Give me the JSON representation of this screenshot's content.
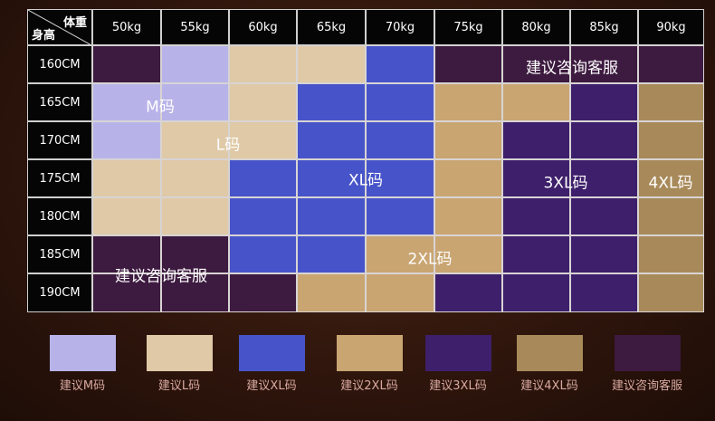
{
  "table": {
    "corner_top": "体重",
    "corner_bottom": "身高",
    "columns": [
      "50kg",
      "55kg",
      "60kg",
      "65kg",
      "70kg",
      "75kg",
      "80kg",
      "85kg",
      "90kg"
    ],
    "rows": [
      {
        "height": "160CM",
        "cells": [
          "#3d1a3f",
          "#b7b3e8",
          "#dfc9a7",
          "#dfc9a7",
          "#4754c9",
          "#3d1a3f",
          "#3d1a3f",
          "#3d1a3f",
          "#3d1a3f"
        ]
      },
      {
        "height": "165CM",
        "cells": [
          "#b7b3e8",
          "#b7b3e8",
          "#dfc9a7",
          "#4754c9",
          "#4754c9",
          "#c9a572",
          "#c9a572",
          "#3e1f6b",
          "#a88a5a"
        ]
      },
      {
        "height": "170CM",
        "cells": [
          "#b7b3e8",
          "#dfc9a7",
          "#dfc9a7",
          "#4754c9",
          "#4754c9",
          "#c9a572",
          "#3e1f6b",
          "#3e1f6b",
          "#a88a5a"
        ]
      },
      {
        "height": "175CM",
        "cells": [
          "#dfc9a7",
          "#dfc9a7",
          "#4754c9",
          "#4754c9",
          "#4754c9",
          "#c9a572",
          "#3e1f6b",
          "#3e1f6b",
          "#a88a5a"
        ]
      },
      {
        "height": "180CM",
        "cells": [
          "#dfc9a7",
          "#dfc9a7",
          "#4754c9",
          "#4754c9",
          "#4754c9",
          "#c9a572",
          "#3e1f6b",
          "#3e1f6b",
          "#a88a5a"
        ]
      },
      {
        "height": "185CM",
        "cells": [
          "#3d1a3f",
          "#3d1a3f",
          "#4754c9",
          "#4754c9",
          "#c9a572",
          "#c9a572",
          "#3e1f6b",
          "#3e1f6b",
          "#a88a5a"
        ]
      },
      {
        "height": "190CM",
        "cells": [
          "#3d1a3f",
          "#3d1a3f",
          "#3d1a3f",
          "#c9a572",
          "#c9a572",
          "#3e1f6b",
          "#3e1f6b",
          "#3e1f6b",
          "#a88a5a"
        ]
      }
    ],
    "region_labels": [
      "建议咨询客服",
      "M码",
      "L码",
      "XL码",
      "3XL码",
      "4XL码",
      "2XL码",
      "建议咨询客服"
    ]
  },
  "legend": [
    {
      "label": "建议M码",
      "color": "#b7b3e8"
    },
    {
      "label": "建议L码",
      "color": "#dfc9a7"
    },
    {
      "label": "建议XL码",
      "color": "#4754c9"
    },
    {
      "label": "建议2XL码",
      "color": "#c9a572"
    },
    {
      "label": "建议3XL码",
      "color": "#3e1f6b"
    },
    {
      "label": "建议4XL码",
      "color": "#a88a5a"
    },
    {
      "label": "建议咨询客服",
      "color": "#3d1a3f"
    }
  ]
}
